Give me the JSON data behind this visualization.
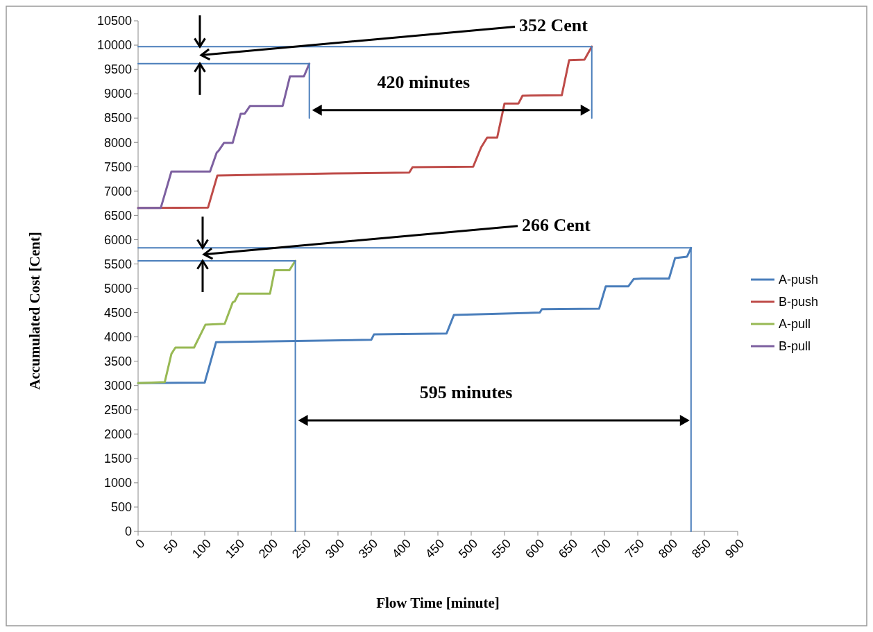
{
  "chart_data": {
    "type": "line",
    "xlabel": "Flow Time [minute]",
    "ylabel": "Accumulated Cost [Cent]",
    "xlim": [
      0,
      900
    ],
    "xticks": [
      0,
      50,
      100,
      150,
      200,
      250,
      300,
      350,
      400,
      450,
      500,
      550,
      600,
      650,
      700,
      750,
      800,
      850,
      900
    ],
    "ylim": [
      0,
      10500
    ],
    "yticks": [
      0,
      500,
      1000,
      1500,
      2000,
      2500,
      3000,
      3500,
      4000,
      4500,
      5000,
      5500,
      6000,
      6500,
      7000,
      7500,
      8000,
      8500,
      9000,
      9500,
      10000,
      10500
    ],
    "grid": false,
    "legend": "right",
    "marker": "none",
    "line_style": "solid",
    "series": [
      {
        "name": "A-push",
        "color": "#4a7ebb",
        "x": [
          0,
          100,
          117,
          350,
          354,
          463,
          474,
          603,
          606,
          692,
          702,
          736,
          744,
          756,
          797,
          806,
          824,
          830
        ],
        "values": [
          3050,
          3060,
          3890,
          3940,
          4050,
          4070,
          4450,
          4500,
          4570,
          4580,
          5040,
          5040,
          5190,
          5200,
          5200,
          5620,
          5650,
          5830
        ]
      },
      {
        "name": "B-push",
        "color": "#be4b48",
        "x": [
          0,
          105,
          119,
          293,
          407,
          412,
          503,
          515,
          524,
          539,
          550,
          571,
          577,
          636,
          647,
          670,
          681
        ],
        "values": [
          6650,
          6660,
          7320,
          7360,
          7380,
          7490,
          7500,
          7900,
          8100,
          8100,
          8800,
          8800,
          8960,
          8970,
          9690,
          9700,
          9970
        ]
      },
      {
        "name": "A-pull",
        "color": "#98b954",
        "x": [
          0,
          40,
          50,
          56,
          84,
          101,
          130,
          142,
          145,
          151,
          198,
          205,
          227,
          236
        ],
        "values": [
          3050,
          3070,
          3650,
          3780,
          3780,
          4250,
          4270,
          4710,
          4730,
          4890,
          4890,
          5370,
          5370,
          5564
        ]
      },
      {
        "name": "B-pull",
        "color": "#7d60a0",
        "x": [
          0,
          34,
          50,
          108,
          118,
          121,
          129,
          142,
          154,
          160,
          168,
          217,
          228,
          249,
          257
        ],
        "values": [
          6650,
          6650,
          7400,
          7400,
          7790,
          7830,
          7990,
          7990,
          8590,
          8590,
          8750,
          8750,
          9360,
          9360,
          9618
        ]
      },
      {
        "color": "#4a7ebb",
        "x": [
          0,
          681,
          681
        ],
        "values": [
          9970,
          9970,
          8500
        ]
      },
      {
        "color": "#4a7ebb",
        "x": [
          0,
          257,
          257
        ],
        "values": [
          9618,
          9618,
          8500
        ]
      },
      {
        "color": "#4a7ebb",
        "x": [
          0,
          830,
          830
        ],
        "values": [
          5830,
          5830,
          0
        ]
      },
      {
        "color": "#4a7ebb",
        "x": [
          0,
          236,
          236
        ],
        "values": [
          5564,
          5564,
          0
        ]
      }
    ],
    "annotations": [
      "352 Cent",
      "420 minutes",
      "266 Cent",
      "595 minutes"
    ]
  }
}
